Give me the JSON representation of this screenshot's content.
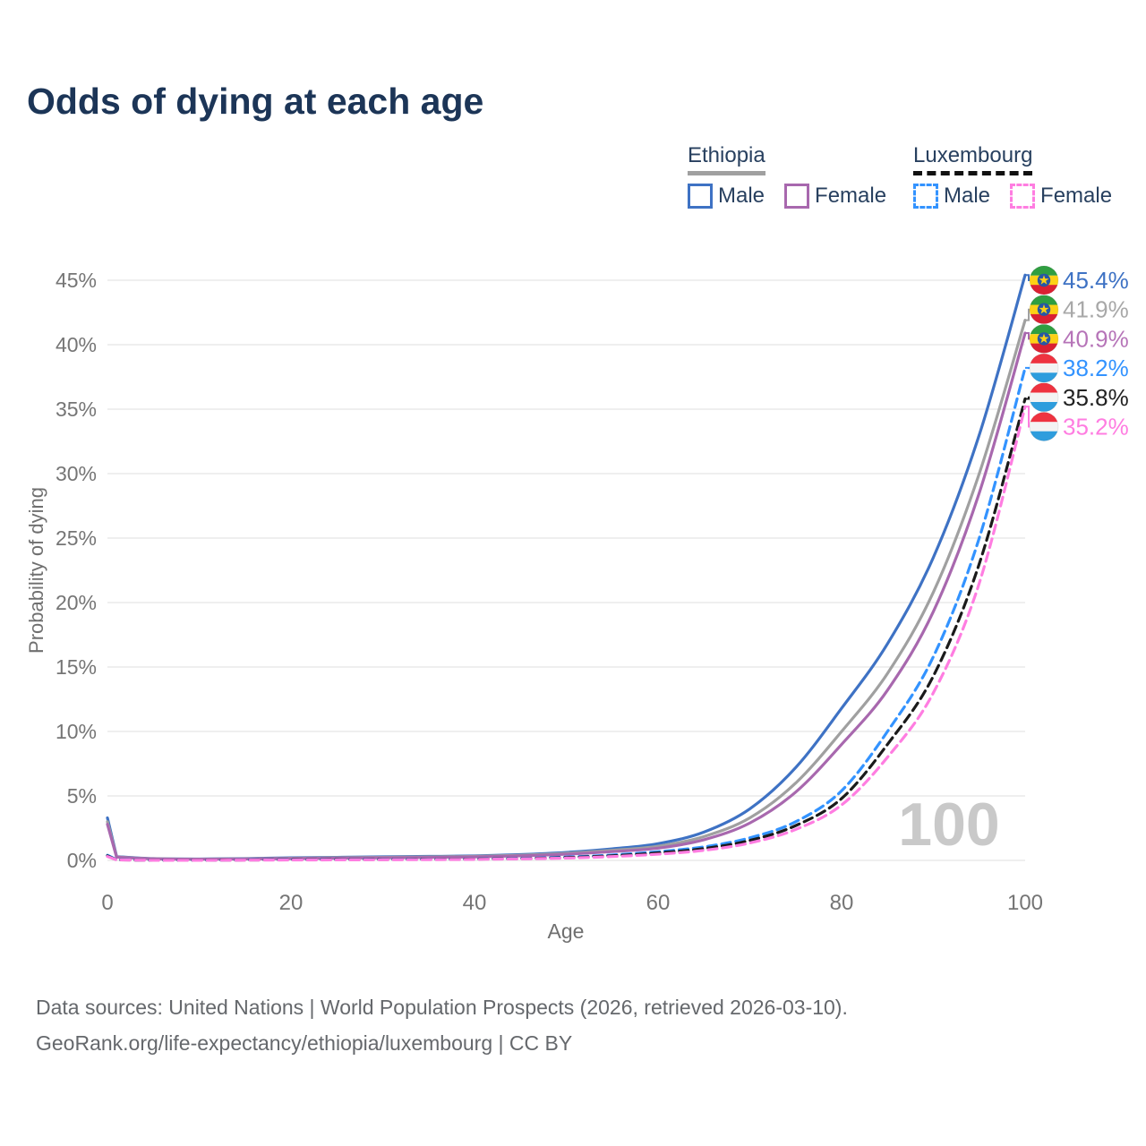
{
  "title": "Odds of dying at each age",
  "legend": {
    "groups": [
      {
        "country": "Ethiopia",
        "line_style": "solid",
        "line_color": "#a0a0a0",
        "items": [
          {
            "label": "Male",
            "color": "#3e72c4",
            "dashed": false
          },
          {
            "label": "Female",
            "color": "#a868ae",
            "dashed": false
          }
        ]
      },
      {
        "country": "Luxembourg",
        "line_style": "dashed",
        "line_color": "#111111",
        "items": [
          {
            "label": "Male",
            "color": "#3393ff",
            "dashed": true
          },
          {
            "label": "Female",
            "color": "#ff7de1",
            "dashed": true
          }
        ]
      }
    ]
  },
  "chart_data": {
    "type": "line",
    "title": "Odds of dying at each age",
    "xlabel": "Age",
    "ylabel": "Probability of dying",
    "x_ticks": [
      0,
      20,
      40,
      60,
      80,
      100
    ],
    "y_ticks_percent": [
      0,
      5,
      10,
      15,
      20,
      25,
      30,
      35,
      40,
      45
    ],
    "xlim": [
      0,
      100
    ],
    "ylim_percent": [
      0,
      45
    ],
    "grid": true,
    "legend_position": "top-right",
    "watermark": "100",
    "x": [
      0,
      1,
      5,
      10,
      15,
      20,
      25,
      30,
      35,
      40,
      45,
      50,
      55,
      60,
      65,
      70,
      75,
      80,
      85,
      90,
      95,
      100
    ],
    "series": [
      {
        "name": "Ethiopia Male",
        "country": "Ethiopia",
        "sex": "male",
        "color": "#3e72c4",
        "dashed": false,
        "flag": "ethiopia",
        "end_label": "45.4%",
        "end_label_color": "#3e72c4",
        "end_value_percent": 45.4,
        "values": [
          3.3,
          0.3,
          0.14,
          0.11,
          0.14,
          0.2,
          0.24,
          0.28,
          0.31,
          0.35,
          0.45,
          0.62,
          0.9,
          1.3,
          2.2,
          4.0,
          7.2,
          11.8,
          16.8,
          23.5,
          33.0,
          45.4
        ]
      },
      {
        "name": "Ethiopia Both sexes",
        "country": "Ethiopia",
        "sex": "both",
        "color": "#a0a0a0",
        "dashed": false,
        "flag": "ethiopia",
        "end_label": "41.9%",
        "end_label_color": "#a8a8a8",
        "end_value_percent": 41.9,
        "values": [
          3.0,
          0.27,
          0.13,
          0.1,
          0.12,
          0.17,
          0.21,
          0.24,
          0.27,
          0.31,
          0.4,
          0.55,
          0.78,
          1.1,
          1.85,
          3.3,
          6.0,
          10.0,
          14.5,
          20.8,
          30.0,
          41.9
        ]
      },
      {
        "name": "Ethiopia Female",
        "country": "Ethiopia",
        "sex": "female",
        "color": "#a868ae",
        "dashed": false,
        "flag": "ethiopia",
        "end_label": "40.9%",
        "end_label_color": "#b674b8",
        "end_value_percent": 40.9,
        "values": [
          2.8,
          0.25,
          0.12,
          0.09,
          0.11,
          0.14,
          0.17,
          0.2,
          0.23,
          0.27,
          0.35,
          0.48,
          0.68,
          0.95,
          1.6,
          2.9,
          5.3,
          9.0,
          13.2,
          19.3,
          28.5,
          40.9
        ]
      },
      {
        "name": "Luxembourg Male",
        "country": "Luxembourg",
        "sex": "male",
        "color": "#3393ff",
        "dashed": true,
        "flag": "luxembourg",
        "end_label": "38.2%",
        "end_label_color": "#3393ff",
        "end_value_percent": 38.2,
        "values": [
          0.4,
          0.05,
          0.02,
          0.02,
          0.04,
          0.06,
          0.07,
          0.08,
          0.09,
          0.11,
          0.16,
          0.26,
          0.42,
          0.68,
          1.05,
          1.75,
          3.0,
          5.4,
          10.0,
          15.8,
          25.0,
          38.2
        ]
      },
      {
        "name": "Luxembourg Both sexes",
        "country": "Luxembourg",
        "sex": "both",
        "color": "#1a1a1a",
        "dashed": true,
        "flag": "luxembourg",
        "end_label": "35.8%",
        "end_label_color": "#222222",
        "end_value_percent": 35.8,
        "values": [
          0.35,
          0.04,
          0.02,
          0.02,
          0.03,
          0.05,
          0.06,
          0.07,
          0.08,
          0.1,
          0.14,
          0.22,
          0.36,
          0.58,
          0.92,
          1.55,
          2.7,
          4.8,
          9.0,
          14.3,
          23.0,
          35.8
        ]
      },
      {
        "name": "Luxembourg Female",
        "country": "Luxembourg",
        "sex": "female",
        "color": "#ff7de1",
        "dashed": true,
        "flag": "luxembourg",
        "end_label": "35.2%",
        "end_label_color": "#ff7de1",
        "end_value_percent": 35.2,
        "values": [
          0.3,
          0.04,
          0.01,
          0.01,
          0.02,
          0.03,
          0.04,
          0.05,
          0.06,
          0.08,
          0.12,
          0.18,
          0.3,
          0.48,
          0.78,
          1.35,
          2.4,
          4.3,
          8.0,
          13.0,
          21.5,
          35.2
        ]
      }
    ],
    "flag_colors": {
      "ethiopia": {
        "green": "#2f9e41",
        "yellow": "#fcd116",
        "red": "#da2032",
        "blue": "#2657a4",
        "star": "#fcd116"
      },
      "luxembourg": {
        "red": "#ee3340",
        "white": "#f3f3f3",
        "blue": "#2e9ddd"
      }
    }
  },
  "footer": {
    "line1": "Data sources: United Nations | World Population Prospects (2026, retrieved 2026-03-10).",
    "line2": "GeoRank.org/life-expectancy/ethiopia/luxembourg | CC BY"
  }
}
